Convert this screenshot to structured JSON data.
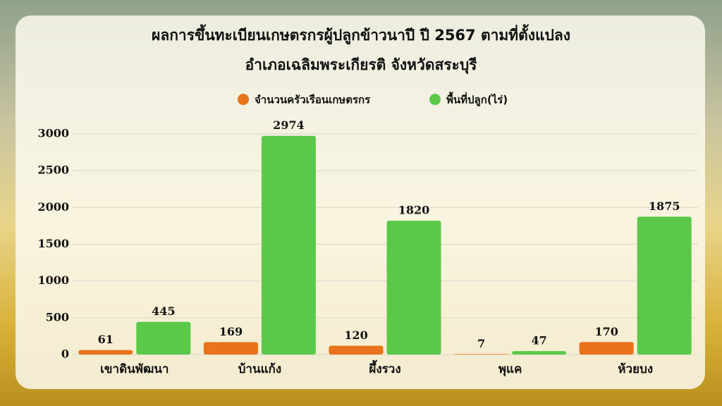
{
  "chart_data": {
    "type": "bar",
    "title": "ผลการขึ้นทะเบียนเกษตรกรผู้ปลูกข้าวนาปี ปี 2567 ตามที่ตั้งแปลง",
    "subtitle": "อำเภอเฉลิมพระเกียรติ  จังหวัดสระบุรี",
    "categories": [
      "เขาดินพัฒนา",
      "บ้านแก้ง",
      "ผึ้งรวง",
      "พุแค",
      "ห้วยบง"
    ],
    "series": [
      {
        "name": "จำนวนครัวเรือนเกษตรกร",
        "color": "#e8731a",
        "values": [
          61,
          169,
          120,
          7,
          170
        ]
      },
      {
        "name": "พื้นที่ปลูก(ไร่)",
        "color": "#5cc84a",
        "values": [
          445,
          2974,
          1820,
          47,
          1875
        ]
      }
    ],
    "ylim": [
      0,
      3000
    ],
    "yticks": [
      0,
      500,
      1000,
      1500,
      2000,
      2500,
      3000
    ],
    "grid": true,
    "legend": "top"
  }
}
